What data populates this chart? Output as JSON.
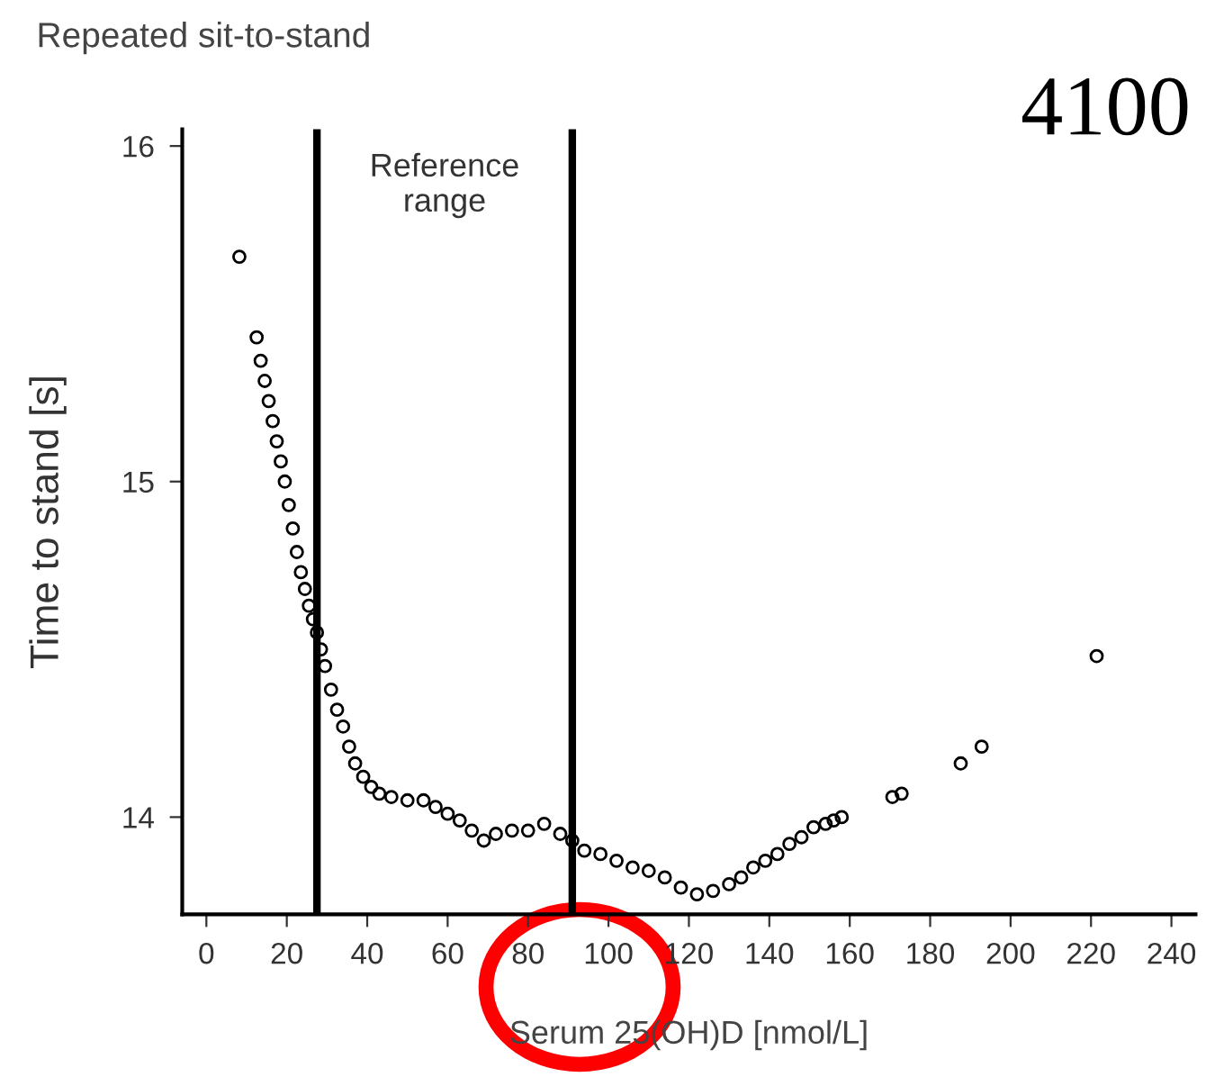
{
  "chart_data": {
    "type": "scatter",
    "title": "Repeated sit-to-stand",
    "xlabel": "Serum 25(OH)D [nmol/L]",
    "ylabel": "Time to stand [s]",
    "xlim": [
      -6,
      246
    ],
    "ylim": [
      13.71,
      16.05
    ],
    "xticks": [
      0,
      20,
      40,
      60,
      80,
      100,
      120,
      140,
      160,
      180,
      200,
      220,
      240
    ],
    "yticks": [
      14,
      15,
      16
    ],
    "grid": false,
    "legend": false,
    "marker": "circle",
    "ref_lines": [
      {
        "axis": "x",
        "value": 27.5,
        "color": "#000000"
      },
      {
        "axis": "x",
        "value": 91,
        "color": "#000000"
      }
    ],
    "annotations": [
      "Reference\nrange",
      "4100"
    ],
    "series": [
      {
        "color": "#000000",
        "x": [
          8.2,
          12.5,
          13.5,
          14.5,
          15.5,
          16.5,
          17.5,
          18.5,
          19.5,
          20.5,
          21.5,
          22.5,
          23.5,
          24.5,
          25.5,
          26.5,
          27.5,
          28.5,
          29.5,
          31,
          32.5,
          34,
          35.5,
          37,
          39,
          41,
          43,
          46,
          50,
          54,
          57,
          60,
          63,
          66,
          69,
          72,
          76,
          80,
          84,
          88,
          91,
          94,
          98,
          102,
          106,
          110,
          114,
          118,
          122,
          126,
          130,
          133,
          136,
          139,
          142,
          145,
          148,
          151,
          154,
          156,
          158,
          170.6,
          172.9,
          187.6,
          192.8,
          221.4
        ],
        "values": [
          15.67,
          15.43,
          15.36,
          15.3,
          15.24,
          15.18,
          15.12,
          15.06,
          15.0,
          14.93,
          14.86,
          14.79,
          14.73,
          14.68,
          14.63,
          14.59,
          14.55,
          14.5,
          14.45,
          14.38,
          14.32,
          14.27,
          14.21,
          14.16,
          14.12,
          14.09,
          14.07,
          14.06,
          14.05,
          14.05,
          14.03,
          14.01,
          13.99,
          13.96,
          13.93,
          13.95,
          13.96,
          13.96,
          13.98,
          13.95,
          13.93,
          13.9,
          13.89,
          13.87,
          13.85,
          13.84,
          13.82,
          13.79,
          13.77,
          13.78,
          13.8,
          13.82,
          13.85,
          13.87,
          13.89,
          13.92,
          13.94,
          13.97,
          13.98,
          13.99,
          14.0,
          14.06,
          14.07,
          14.16,
          14.21,
          14.48
        ]
      }
    ]
  }
}
